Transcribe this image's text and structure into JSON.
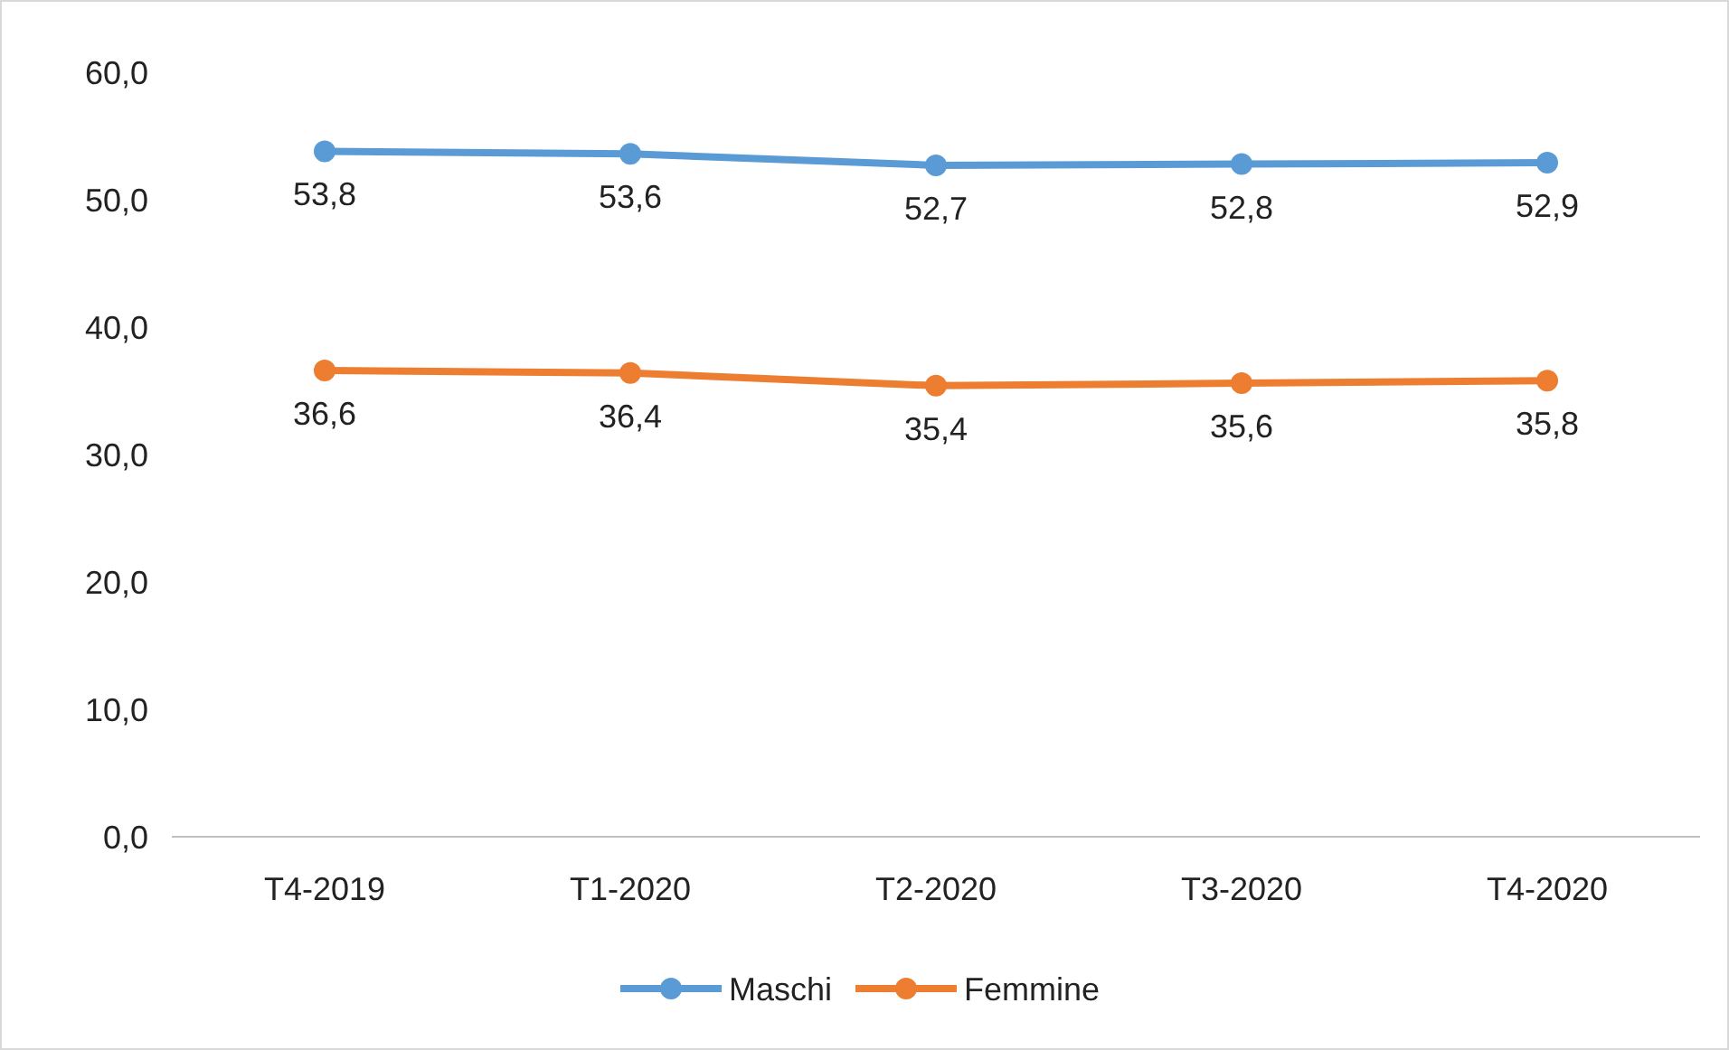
{
  "chart_data": {
    "type": "line",
    "categories": [
      "T4-2019",
      "T1-2020",
      "T2-2020",
      "T3-2020",
      "T4-2020"
    ],
    "series": [
      {
        "name": "Maschi",
        "color": "#5b9bd5",
        "values": [
          53.8,
          53.6,
          52.7,
          52.8,
          52.9
        ],
        "value_labels": [
          "53,8",
          "53,6",
          "52,7",
          "52,8",
          "52,9"
        ]
      },
      {
        "name": "Femmine",
        "color": "#ed7d31",
        "values": [
          36.6,
          36.4,
          35.4,
          35.6,
          35.8
        ],
        "value_labels": [
          "36,6",
          "36,4",
          "35,4",
          "35,6",
          "35,8"
        ]
      }
    ],
    "ylim": [
      0,
      60
    ],
    "yticks": [
      {
        "value": 0,
        "label": "0,0"
      },
      {
        "value": 10,
        "label": "10,0"
      },
      {
        "value": 20,
        "label": "20,0"
      },
      {
        "value": 30,
        "label": "30,0"
      },
      {
        "value": 40,
        "label": "40,0"
      },
      {
        "value": 50,
        "label": "50,0"
      },
      {
        "value": 60,
        "label": "60,0"
      }
    ],
    "grid": false,
    "legend": "bottom",
    "marker": "circle",
    "line_style": "solid"
  }
}
